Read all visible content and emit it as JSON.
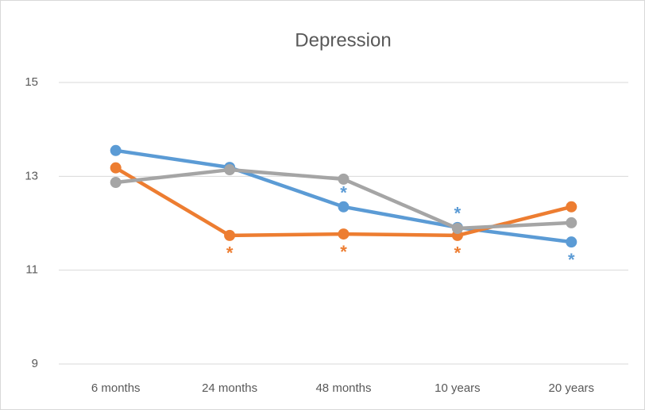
{
  "chart_data": {
    "type": "line",
    "title": "Depression",
    "categories": [
      "6 months",
      "24 months",
      "48 months",
      "10 years",
      "20 years"
    ],
    "series": [
      {
        "color": "#5b9bd5",
        "values": [
          13.55,
          13.19,
          12.35,
          11.91,
          11.6
        ],
        "annotations": [
          null,
          null,
          "*",
          "*",
          "*"
        ]
      },
      {
        "color": "#ed7d31",
        "values": [
          13.18,
          11.74,
          11.77,
          11.74,
          12.35
        ],
        "annotations": [
          null,
          "*",
          "*",
          "*",
          null
        ]
      },
      {
        "color": "#a5a5a5",
        "values": [
          12.87,
          13.14,
          12.94,
          11.89,
          12.01
        ],
        "annotations": [
          null,
          null,
          null,
          null,
          null
        ]
      }
    ],
    "ylim": [
      9,
      15
    ],
    "yticks": [
      9,
      11,
      13,
      15
    ],
    "grid": true
  }
}
